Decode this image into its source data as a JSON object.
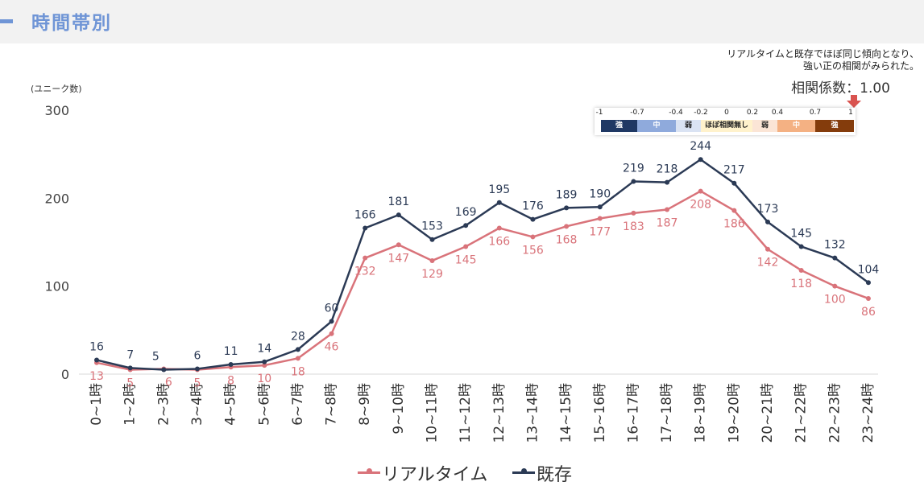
{
  "header": {
    "title": "時間帯別"
  },
  "note": {
    "line1": "リアルタイムと既存でほぼ同じ傾向となり、",
    "line2": "強い正の相関がみられた。",
    "correlation": "相関係数：1.00"
  },
  "scale": {
    "ticks": [
      "-1",
      "-0.7",
      "-0.4",
      "-0.2",
      "0",
      "0.2",
      "0.4",
      "0.7",
      "1"
    ],
    "segments": [
      {
        "label": "強",
        "color": "#1f3864",
        "text_color": "#ffffff"
      },
      {
        "label": "中",
        "color": "#8faadc",
        "text_color": "#ffffff"
      },
      {
        "label": "弱",
        "color": "#dae3f3",
        "text_color": "#222222"
      },
      {
        "label": "ほぼ相関無し",
        "color": "#fff2cc",
        "text_color": "#222222"
      },
      {
        "label": "弱",
        "color": "#fbe5d6",
        "text_color": "#222222"
      },
      {
        "label": "中",
        "color": "#f4b183",
        "text_color": "#ffffff"
      },
      {
        "label": "強",
        "color": "#843c0c",
        "text_color": "#ffffff"
      }
    ],
    "arrow_color": "#d9534f"
  },
  "chart_data": {
    "type": "line",
    "ylabel": "(ユニーク数)",
    "ylim": [
      0,
      300
    ],
    "yticks": [
      "0",
      "100",
      "200",
      "300"
    ],
    "categories": [
      "0~1時",
      "1~2時",
      "2~3時",
      "3~4時",
      "4~5時",
      "5~6時",
      "6~7時",
      "7~8時",
      "8~9時",
      "9~10時",
      "10~11時",
      "11~12時",
      "12~13時",
      "13~14時",
      "14~15時",
      "15~16時",
      "16~17時",
      "17~18時",
      "18~19時",
      "19~20時",
      "20~21時",
      "21~22時",
      "22~23時",
      "23~24時"
    ],
    "series": [
      {
        "name": "リアルタイム",
        "color": "#d9737a",
        "values": [
          13,
          5,
          6,
          5,
          8,
          10,
          18,
          46,
          132,
          147,
          129,
          145,
          166,
          156,
          168,
          177,
          183,
          187,
          208,
          186,
          142,
          118,
          100,
          86
        ]
      },
      {
        "name": "既存",
        "color": "#2b3a55",
        "values": [
          16,
          7,
          5,
          6,
          11,
          14,
          28,
          60,
          166,
          181,
          153,
          169,
          195,
          176,
          189,
          190,
          219,
          218,
          244,
          217,
          173,
          145,
          132,
          104
        ]
      }
    ],
    "legend_position": "bottom",
    "grid": false
  }
}
